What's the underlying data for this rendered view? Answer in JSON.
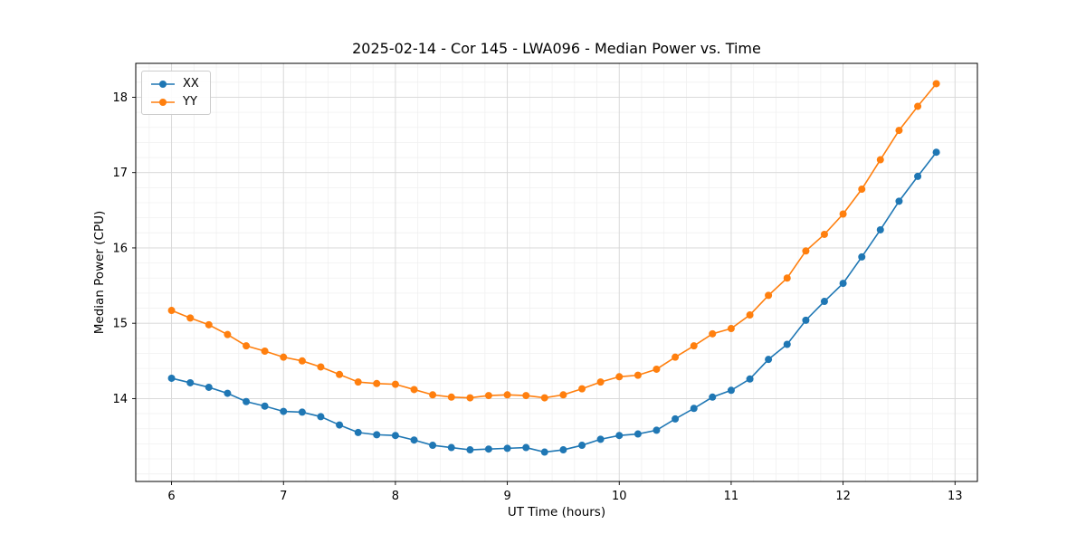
{
  "chart_data": {
    "type": "line",
    "title": "2025-02-14 - Cor 145 - LWA096 - Median Power vs. Time",
    "xlabel": "UT Time (hours)",
    "ylabel": "Median Power (CPU)",
    "xlim": [
      5.68,
      13.2
    ],
    "ylim": [
      12.9,
      18.45
    ],
    "xticks": [
      6,
      7,
      8,
      9,
      10,
      11,
      12,
      13
    ],
    "yticks": [
      14,
      15,
      16,
      17,
      18
    ],
    "grid": true,
    "legend_position": "upper left",
    "x": [
      6.0,
      6.167,
      6.333,
      6.5,
      6.667,
      6.833,
      7.0,
      7.167,
      7.333,
      7.5,
      7.667,
      7.833,
      8.0,
      8.167,
      8.333,
      8.5,
      8.667,
      8.833,
      9.0,
      9.167,
      9.333,
      9.5,
      9.667,
      9.833,
      10.0,
      10.167,
      10.333,
      10.5,
      10.667,
      10.833,
      11.0,
      11.167,
      11.333,
      11.5,
      11.667,
      11.833,
      12.0,
      12.167,
      12.333,
      12.5,
      12.667,
      12.833
    ],
    "series": [
      {
        "name": "XX",
        "color": "#1f77b4",
        "values": [
          14.27,
          14.21,
          14.15,
          14.07,
          13.96,
          13.9,
          13.83,
          13.82,
          13.76,
          13.65,
          13.55,
          13.52,
          13.51,
          13.45,
          13.38,
          13.35,
          13.32,
          13.33,
          13.34,
          13.35,
          13.29,
          13.32,
          13.38,
          13.46,
          13.51,
          13.53,
          13.58,
          13.73,
          13.87,
          14.02,
          14.11,
          14.26,
          14.52,
          14.72,
          15.04,
          15.29,
          15.53,
          15.88,
          16.24,
          16.62,
          16.95,
          17.27
        ]
      },
      {
        "name": "YY",
        "color": "#ff7f0e",
        "values": [
          15.17,
          15.07,
          14.98,
          14.85,
          14.7,
          14.63,
          14.55,
          14.5,
          14.42,
          14.32,
          14.22,
          14.2,
          14.19,
          14.12,
          14.05,
          14.02,
          14.01,
          14.04,
          14.05,
          14.04,
          14.01,
          14.05,
          14.13,
          14.22,
          14.29,
          14.31,
          14.39,
          14.55,
          14.7,
          14.86,
          14.93,
          15.11,
          15.37,
          15.6,
          15.96,
          16.18,
          16.45,
          16.78,
          17.17,
          17.56,
          17.88,
          18.18
        ]
      }
    ]
  }
}
